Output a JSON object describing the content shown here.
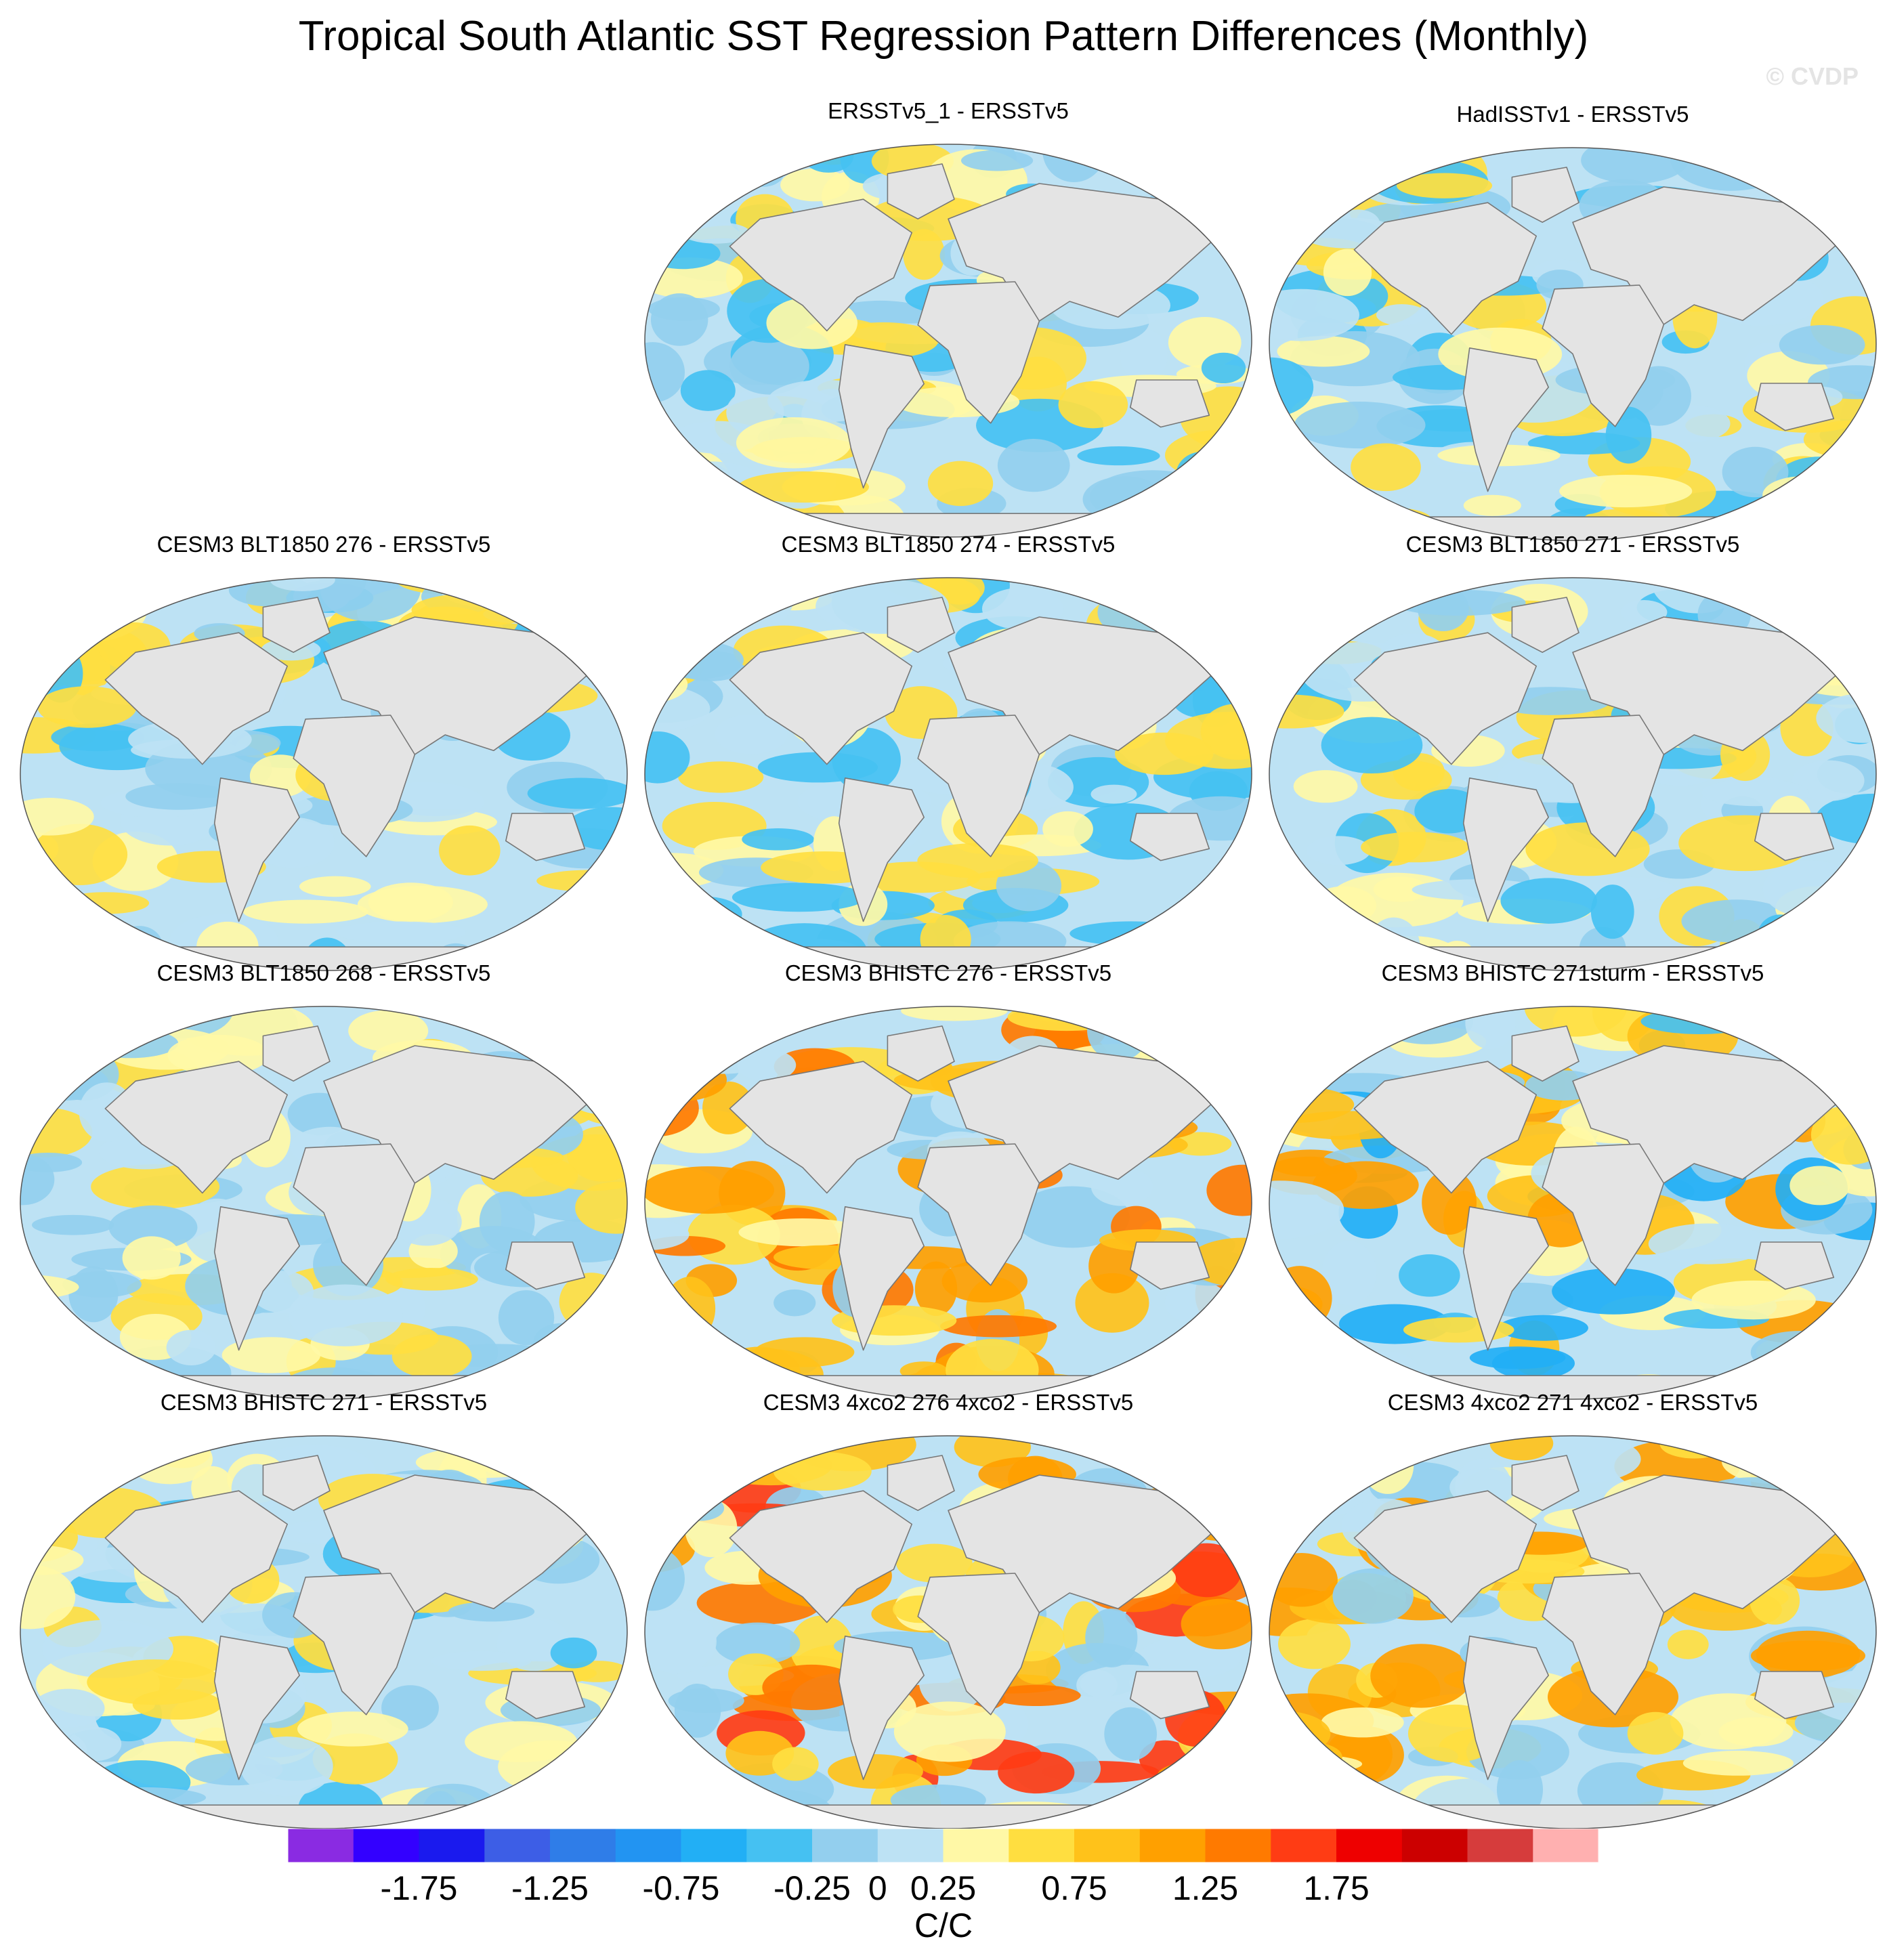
{
  "title": "Tropical South Atlantic SST Regression Pattern Differences (Monthly)",
  "watermark": "© CVDP",
  "chart_data": {
    "type": "heatmap",
    "title": "Tropical South Atlantic SST Regression Pattern Differences (Monthly)",
    "projection": "Robinson (global ocean map, land masked grey)",
    "units": "C/C",
    "panels": [
      {
        "label": "ERSSTv5_1 - ERSSTv5",
        "dominant_range": [
          -0.75,
          0.5
        ],
        "notes": "mostly weak light-blue/yellow mix"
      },
      {
        "label": "HadISSTv1 - ERSSTv5",
        "dominant_range": [
          -0.75,
          0.5
        ],
        "notes": "blue Pacific, yellow patches in Atlantic"
      },
      {
        "label": "CESM3 BLT1850 276 - ERSSTv5",
        "dominant_range": [
          -0.75,
          0.5
        ],
        "notes": "yellow Southern Ocean south of Atlantic"
      },
      {
        "label": "CESM3 BLT1850 274 - ERSSTv5",
        "dominant_range": [
          -0.75,
          0.5
        ],
        "notes": "blue dominated tropics"
      },
      {
        "label": "CESM3 BLT1850 271 - ERSSTv5",
        "dominant_range": [
          -0.75,
          0.5
        ],
        "notes": "blue Pacific, yellow South Atlantic"
      },
      {
        "label": "CESM3 BLT1850 268 - ERSSTv5",
        "dominant_range": [
          -0.5,
          0.5
        ],
        "notes": "banded yellow/blue"
      },
      {
        "label": "CESM3 BHISTC 276 - ERSSTv5",
        "dominant_range": [
          -0.5,
          1.25
        ],
        "notes": "strong warm Southern Ocean south of Africa"
      },
      {
        "label": "CESM3 BHISTC 271sturm - ERSSTv5",
        "dominant_range": [
          -1.0,
          1.0
        ],
        "notes": "blue N Pacific, warm S Atlantic"
      },
      {
        "label": "CESM3 BHISTC 271 - ERSSTv5",
        "dominant_range": [
          -0.75,
          0.5
        ],
        "notes": "mostly light blue"
      },
      {
        "label": "CESM3 4xco2 276 4xco2 - ERSSTv5",
        "dominant_range": [
          -0.5,
          1.5
        ],
        "notes": "strong warm tropical Pacific/Atlantic"
      },
      {
        "label": "CESM3 4xco2 271 4xco2 - ERSSTv5",
        "dominant_range": [
          -0.5,
          1.0
        ],
        "notes": "warm tropical Pacific, yellow widespread"
      }
    ],
    "colorbar": {
      "label": "C/C",
      "levels": [
        -2.0,
        -1.75,
        -1.5,
        -1.25,
        -1.0,
        -0.75,
        -0.5,
        -0.25,
        0,
        0.25,
        0.5,
        0.75,
        1.0,
        1.25,
        1.5,
        1.75,
        2.0
      ],
      "tick_labels": [
        "-1.75",
        "-1.25",
        "-0.75",
        "-0.25",
        "0",
        "0.25",
        "0.75",
        "1.25",
        "1.75"
      ],
      "tick_values": [
        -1.75,
        -1.25,
        -0.75,
        -0.25,
        0,
        0.25,
        0.75,
        1.25,
        1.75
      ],
      "colors": [
        "#8a2be2",
        "#3300ff",
        "#1a1aee",
        "#3d5ee6",
        "#2f7de8",
        "#2294f2",
        "#22aff5",
        "#45c1f2",
        "#93cfee",
        "#bde2f4",
        "#fff8a6",
        "#ffde40",
        "#ffc21a",
        "#ffa000",
        "#ff7a00",
        "#ff3c14",
        "#ee0000",
        "#cc0000",
        "#d63c3c",
        "#ffb0b0"
      ]
    },
    "palette": {
      "land": "#e4e4e4",
      "coast": "#777777"
    }
  }
}
